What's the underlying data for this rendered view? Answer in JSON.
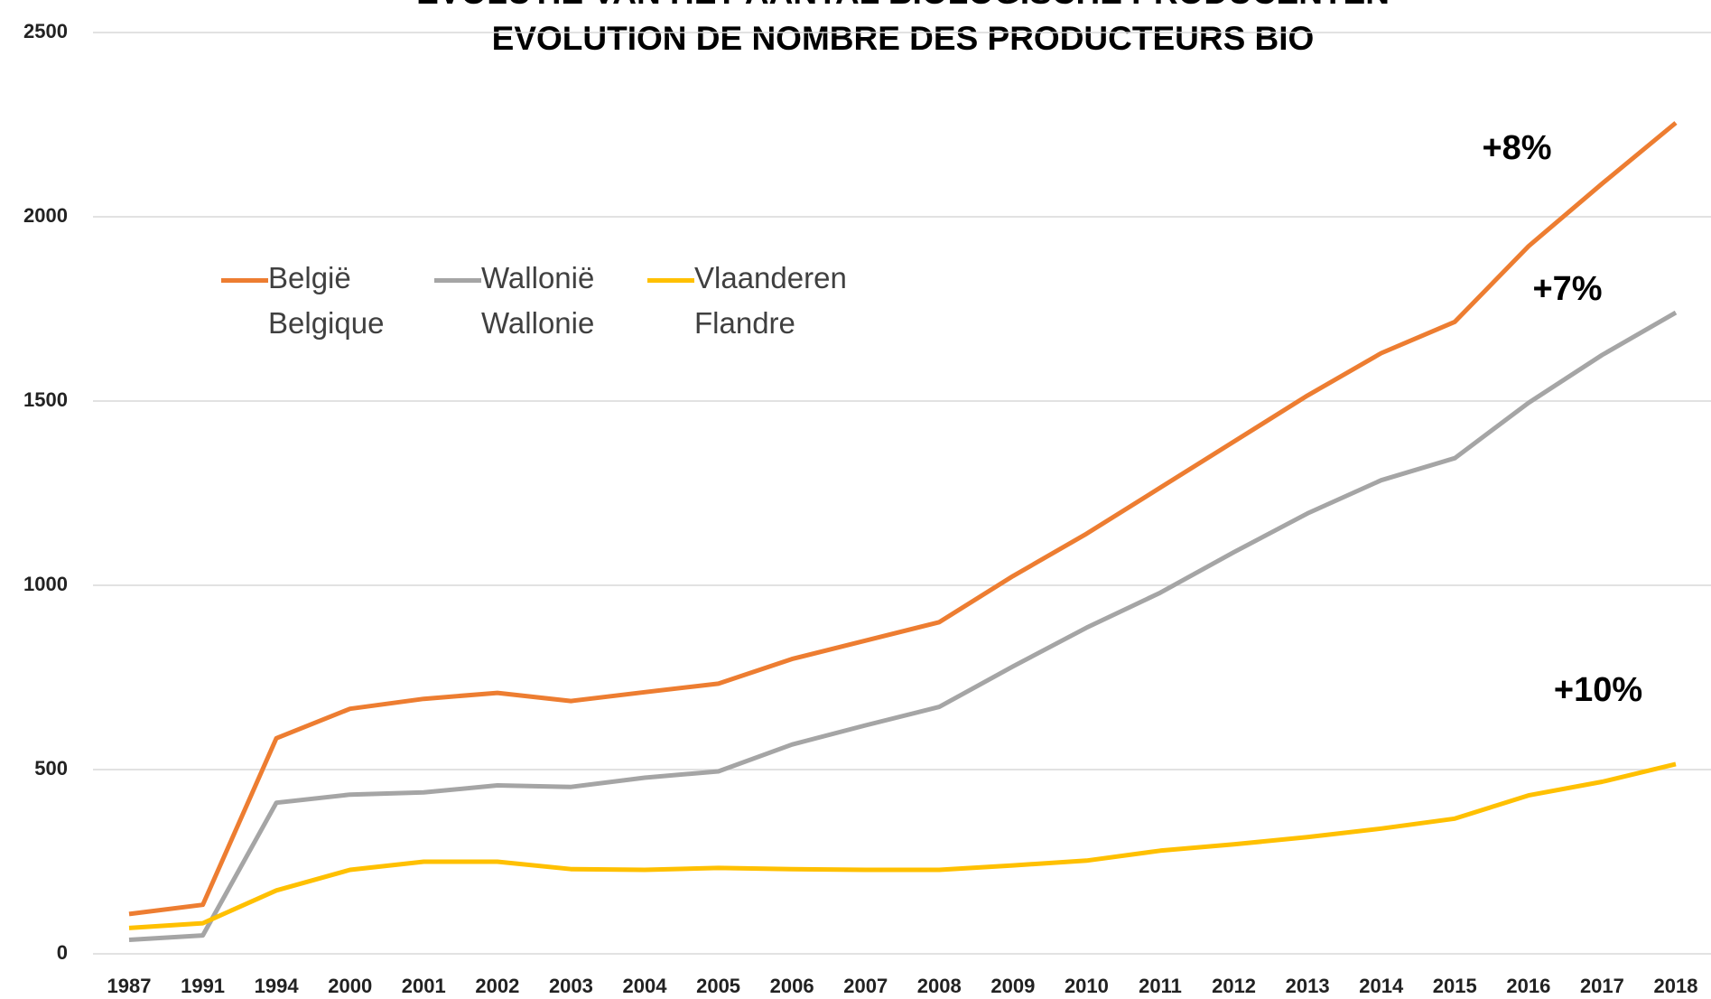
{
  "chart_data": {
    "type": "line",
    "title": "EVOLUTIE VAN HET AANTAL BIOLOGISCHE PRODUCENTEN",
    "subtitle": "EVOLUTION DE NOMBRE DES PRODUCTEURS BIO",
    "categories": [
      "1987",
      "1991",
      "1994",
      "2000",
      "2001",
      "2002",
      "2003",
      "2004",
      "2005",
      "2006",
      "2007",
      "2008",
      "2009",
      "2010",
      "2011",
      "2012",
      "2013",
      "2014",
      "2015",
      "2016",
      "2017",
      "2018"
    ],
    "series": [
      {
        "name": "België Belgique",
        "color": "#ed7d31",
        "values": [
          108,
          133,
          585,
          665,
          692,
          708,
          686,
          710,
          733,
          800,
          850,
          900,
          1025,
          1140,
          1265,
          1390,
          1515,
          1630,
          1715,
          1920,
          2090,
          2255
        ]
      },
      {
        "name": "Wallonië Wallonie",
        "color": "#a5a5a5",
        "values": [
          38,
          50,
          410,
          432,
          438,
          457,
          453,
          478,
          495,
          568,
          620,
          670,
          780,
          885,
          980,
          1090,
          1195,
          1285,
          1345,
          1495,
          1625,
          1740
        ]
      },
      {
        "name": "Vlaanderen Flandre",
        "color": "#ffc000",
        "values": [
          70,
          83,
          172,
          228,
          250,
          250,
          230,
          228,
          233,
          230,
          228,
          228,
          240,
          253,
          280,
          297,
          317,
          340,
          367,
          430,
          467,
          515
        ]
      }
    ],
    "annotations": [
      "+8%",
      "+7%",
      "+10%"
    ],
    "ylim": [
      0,
      2500
    ],
    "yticks": [
      0,
      500,
      1000,
      1500,
      2000,
      2500
    ],
    "grid": true,
    "legend": "top-left"
  }
}
